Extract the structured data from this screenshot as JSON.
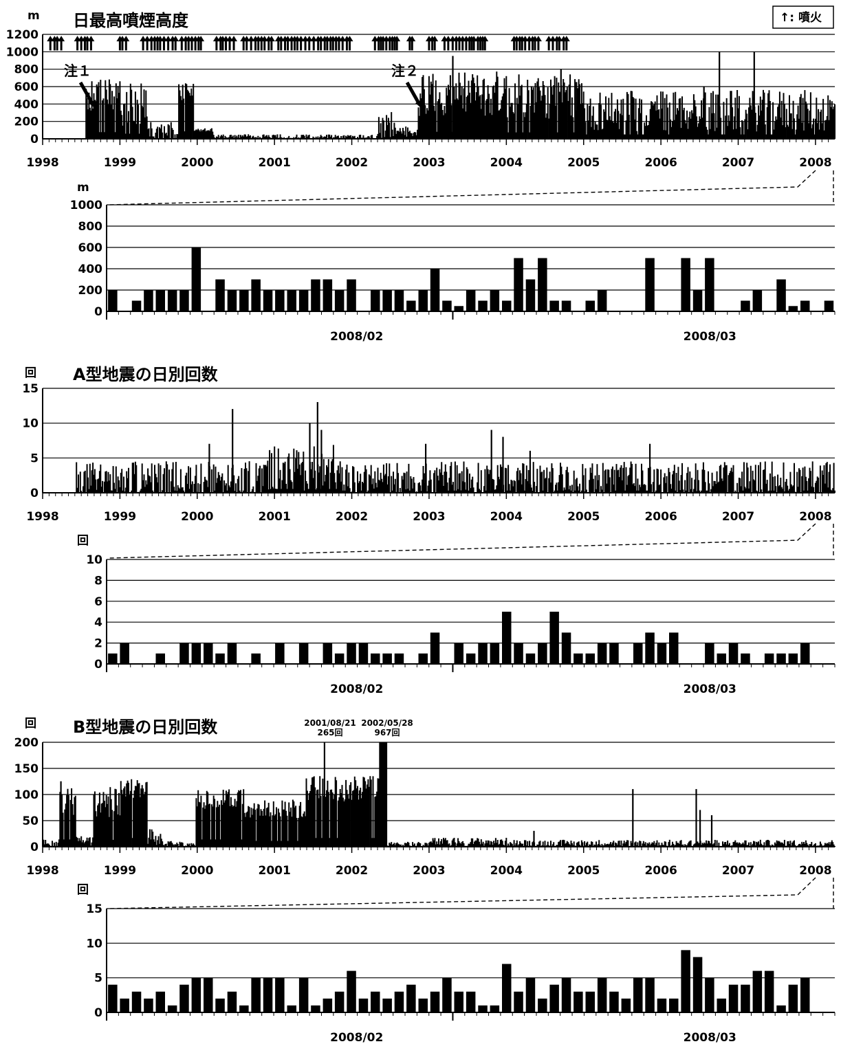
{
  "chart_data": [
    {
      "type": "bar",
      "title": "日最高噴煙高度",
      "ylabel": "m",
      "ylim": [
        0,
        1200
      ],
      "yticks": [
        0,
        200,
        400,
        600,
        800,
        1000,
        1200
      ],
      "xlim": [
        1998,
        2008.25
      ],
      "xticks": [
        "1998",
        "1999",
        "2000",
        "2001",
        "2002",
        "2003",
        "2004",
        "2005",
        "2006",
        "2007",
        "2008"
      ],
      "legend": "↑: 噴火",
      "annotations": [
        {
          "text": "注１",
          "x": 1998.58,
          "y": 400
        },
        {
          "text": "注２",
          "x": 2002.85,
          "y": 400
        }
      ],
      "eruption_periods": [
        [
          1998.1,
          1998.25
        ],
        [
          1998.45,
          1998.65
        ],
        [
          1999.0,
          1999.1
        ],
        [
          1999.3,
          1999.75
        ],
        [
          1999.8,
          2000.1
        ],
        [
          2000.25,
          2000.5
        ],
        [
          2000.6,
          2001.0
        ],
        [
          2001.05,
          2001.4
        ],
        [
          2001.45,
          2002.0
        ],
        [
          2002.3,
          2002.6
        ],
        [
          2002.75,
          2002.8
        ],
        [
          2003.0,
          2003.1
        ],
        [
          2003.2,
          2003.75
        ],
        [
          2004.1,
          2004.45
        ],
        [
          2004.55,
          2004.8
        ]
      ],
      "segments": [
        {
          "x0": 1998.0,
          "x1": 1998.55,
          "level": 0,
          "amp": 0
        },
        {
          "x0": 1998.55,
          "x1": 1999.0,
          "level": 500,
          "amp": 180
        },
        {
          "x0": 1999.0,
          "x1": 1999.35,
          "level": 380,
          "amp": 260
        },
        {
          "x0": 1999.35,
          "x1": 1999.75,
          "level": 70,
          "amp": 120
        },
        {
          "x0": 1999.75,
          "x1": 1999.95,
          "level": 560,
          "amp": 120
        },
        {
          "x0": 1999.95,
          "x1": 2000.2,
          "level": 100,
          "amp": 20
        },
        {
          "x0": 2000.2,
          "x1": 2002.3,
          "level": 25,
          "amp": 25
        },
        {
          "x0": 2002.3,
          "x1": 2002.55,
          "level": 120,
          "amp": 200
        },
        {
          "x0": 2002.55,
          "x1": 2002.85,
          "level": 80,
          "amp": 60
        },
        {
          "x0": 2002.85,
          "x1": 2004.0,
          "level": 520,
          "amp": 260
        },
        {
          "x0": 2004.0,
          "x1": 2005.0,
          "level": 480,
          "amp": 260
        },
        {
          "x0": 2005.0,
          "x1": 2008.25,
          "level": 320,
          "amp": 240
        }
      ],
      "peaks": [
        [
          2003.3,
          950
        ],
        [
          2004.7,
          800
        ],
        [
          2006.75,
          1000
        ],
        [
          2007.2,
          1000
        ],
        [
          2006.55,
          600
        ],
        [
          2004.9,
          650
        ]
      ]
    },
    {
      "type": "bar",
      "title": "",
      "ylabel": "m",
      "ylim": [
        0,
        1000
      ],
      "yticks": [
        0,
        200,
        400,
        600,
        800,
        1000
      ],
      "month_labels": [
        "2008/02",
        "2008/03"
      ],
      "values": [
        200,
        0,
        100,
        200,
        200,
        200,
        200,
        600,
        0,
        300,
        200,
        200,
        300,
        200,
        200,
        200,
        200,
        300,
        300,
        200,
        300,
        0,
        200,
        200,
        200,
        100,
        200,
        400,
        100,
        50,
        200,
        100,
        200,
        100,
        500,
        300,
        500,
        100,
        100,
        0,
        100,
        200,
        0,
        0,
        0,
        500,
        0,
        0,
        500,
        200,
        500,
        0,
        0,
        100,
        200,
        0,
        300,
        50,
        100,
        0,
        100
      ]
    },
    {
      "type": "bar",
      "title": "A型地震の日別回数",
      "ylabel": "回",
      "ylim": [
        0,
        15
      ],
      "yticks": [
        0,
        5,
        10,
        15
      ],
      "xlim": [
        1998,
        2008.25
      ],
      "xticks": [
        "1998",
        "1999",
        "2000",
        "2001",
        "2002",
        "2003",
        "2004",
        "2005",
        "2006",
        "2007",
        "2008"
      ],
      "segments": [
        {
          "x0": 1998.0,
          "x1": 1998.42,
          "level": 0,
          "amp": 0
        },
        {
          "x0": 1998.42,
          "x1": 2000.9,
          "level": 2,
          "amp": 2.5
        },
        {
          "x0": 2000.9,
          "x1": 2001.8,
          "level": 3.5,
          "amp": 3.5
        },
        {
          "x0": 2001.8,
          "x1": 2008.25,
          "level": 2,
          "amp": 2.5
        }
      ],
      "peaks": [
        [
          2000.45,
          12
        ],
        [
          2001.45,
          10
        ],
        [
          2001.55,
          13
        ],
        [
          2001.6,
          9
        ],
        [
          2003.8,
          9
        ],
        [
          2003.95,
          8
        ],
        [
          2000.15,
          7
        ],
        [
          2002.95,
          7
        ],
        [
          2004.3,
          6
        ],
        [
          2005.85,
          7
        ]
      ]
    },
    {
      "type": "bar",
      "title": "",
      "ylabel": "回",
      "ylim": [
        0,
        10
      ],
      "yticks": [
        0,
        2,
        4,
        6,
        8,
        10
      ],
      "month_labels": [
        "2008/02",
        "2008/03"
      ],
      "values": [
        1,
        2,
        0,
        0,
        1,
        0,
        2,
        2,
        2,
        1,
        2,
        0,
        1,
        0,
        2,
        0,
        2,
        0,
        2,
        1,
        2,
        2,
        1,
        1,
        1,
        0,
        1,
        3,
        0,
        2,
        1,
        2,
        2,
        5,
        2,
        1,
        2,
        5,
        3,
        1,
        1,
        2,
        2,
        0,
        2,
        3,
        2,
        3,
        0,
        0,
        2,
        1,
        2,
        1,
        0,
        1,
        1,
        1,
        2,
        0,
        0
      ]
    },
    {
      "type": "bar",
      "title": "B型地震の日別回数",
      "ylabel": "回",
      "ylim": [
        0,
        200
      ],
      "yticks": [
        0,
        50,
        100,
        150,
        200
      ],
      "xlim": [
        1998,
        2008.25
      ],
      "xticks": [
        "1998",
        "1999",
        "2000",
        "2001",
        "2002",
        "2003",
        "2004",
        "2005",
        "2006",
        "2007",
        "2008"
      ],
      "annotations": [
        {
          "date": "2001/08/21",
          "count": "265回",
          "x": 2001.64
        },
        {
          "date": "2002/05/28",
          "count": "967回",
          "x": 2002.41
        }
      ],
      "segments": [
        {
          "x0": 1998.0,
          "x1": 1998.2,
          "level": 8,
          "amp": 6
        },
        {
          "x0": 1998.2,
          "x1": 1998.42,
          "level": 90,
          "amp": 30
        },
        {
          "x0": 1998.42,
          "x1": 1998.65,
          "level": 12,
          "amp": 8
        },
        {
          "x0": 1998.65,
          "x1": 1999.0,
          "level": 85,
          "amp": 30
        },
        {
          "x0": 1999.0,
          "x1": 1999.35,
          "level": 110,
          "amp": 20
        },
        {
          "x0": 1999.35,
          "x1": 1999.55,
          "level": 20,
          "amp": 15
        },
        {
          "x0": 1999.55,
          "x1": 1999.98,
          "level": 6,
          "amp": 5
        },
        {
          "x0": 1999.98,
          "x1": 2000.6,
          "level": 90,
          "amp": 20
        },
        {
          "x0": 2000.6,
          "x1": 2001.4,
          "level": 72,
          "amp": 18
        },
        {
          "x0": 2001.4,
          "x1": 2002.35,
          "level": 110,
          "amp": 25
        },
        {
          "x0": 2002.35,
          "x1": 2002.45,
          "level": 200,
          "amp": 0
        },
        {
          "x0": 2002.45,
          "x1": 2003.0,
          "level": 5,
          "amp": 4
        },
        {
          "x0": 2003.0,
          "x1": 2004.0,
          "level": 9,
          "amp": 8
        },
        {
          "x0": 2004.0,
          "x1": 2008.25,
          "level": 7,
          "amp": 6
        }
      ],
      "peaks": [
        [
          1998.23,
          125
        ],
        [
          2001.64,
          200
        ],
        [
          2005.63,
          110
        ],
        [
          2006.45,
          110
        ],
        [
          2006.5,
          70
        ],
        [
          2006.65,
          60
        ],
        [
          2004.35,
          30
        ]
      ]
    },
    {
      "type": "bar",
      "title": "",
      "ylabel": "回",
      "ylim": [
        0,
        15
      ],
      "yticks": [
        0,
        5,
        10,
        15
      ],
      "month_labels": [
        "2008/02",
        "2008/03"
      ],
      "values": [
        4,
        2,
        3,
        2,
        3,
        1,
        4,
        5,
        5,
        2,
        3,
        1,
        5,
        5,
        5,
        1,
        5,
        1,
        2,
        3,
        6,
        2,
        3,
        2,
        3,
        4,
        2,
        3,
        5,
        3,
        3,
        1,
        1,
        7,
        3,
        5,
        2,
        4,
        5,
        3,
        3,
        5,
        3,
        2,
        5,
        5,
        2,
        2,
        9,
        8,
        5,
        2,
        4,
        4,
        6,
        6,
        1,
        4,
        5,
        0,
        0
      ]
    }
  ]
}
